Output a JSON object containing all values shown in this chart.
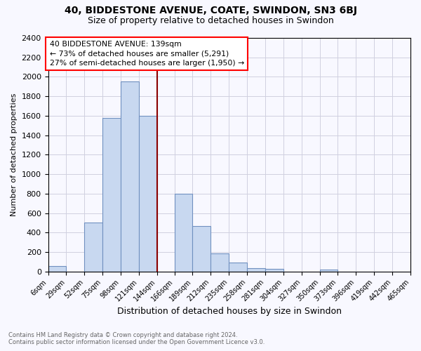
{
  "title": "40, BIDDESTONE AVENUE, COATE, SWINDON, SN3 6BJ",
  "subtitle": "Size of property relative to detached houses in Swindon",
  "xlabel": "Distribution of detached houses by size in Swindon",
  "ylabel": "Number of detached properties",
  "bin_edges": [
    6,
    29,
    52,
    75,
    98,
    121,
    144,
    166,
    189,
    212,
    235,
    258,
    281,
    304,
    327,
    350,
    373,
    396,
    419,
    442,
    465
  ],
  "bin_labels": [
    "6sqm",
    "29sqm",
    "52sqm",
    "75sqm",
    "98sqm",
    "121sqm",
    "144sqm",
    "166sqm",
    "189sqm",
    "212sqm",
    "235sqm",
    "258sqm",
    "281sqm",
    "304sqm",
    "327sqm",
    "350sqm",
    "373sqm",
    "396sqm",
    "419sqm",
    "442sqm",
    "465sqm"
  ],
  "bar_heights": [
    55,
    0,
    500,
    1580,
    1950,
    1600,
    0,
    800,
    470,
    185,
    95,
    35,
    30,
    0,
    0,
    20,
    0,
    0,
    0,
    0
  ],
  "bar_color": "#c8d8f0",
  "bar_edge_color": "#7090c0",
  "property_line_x": 144,
  "property_line_color": "#8b0000",
  "annotation_line1": "40 BIDDESTONE AVENUE: 139sqm",
  "annotation_line2": "← 73% of detached houses are smaller (5,291)",
  "annotation_line3": "27% of semi-detached houses are larger (1,950) →",
  "annotation_box_color": "white",
  "annotation_box_edge_color": "red",
  "ylim": [
    0,
    2400
  ],
  "yticks": [
    0,
    200,
    400,
    600,
    800,
    1000,
    1200,
    1400,
    1600,
    1800,
    2000,
    2200,
    2400
  ],
  "footer_line1": "Contains HM Land Registry data © Crown copyright and database right 2024.",
  "footer_line2": "Contains public sector information licensed under the Open Government Licence v3.0.",
  "background_color": "#f8f8ff",
  "grid_color": "#d0d0e0"
}
